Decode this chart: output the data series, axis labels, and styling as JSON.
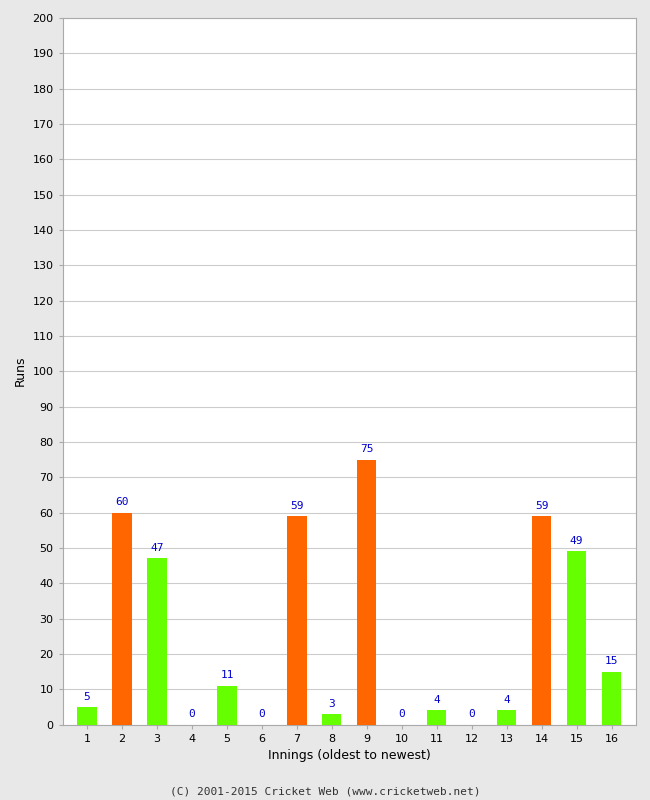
{
  "xlabel": "Innings (oldest to newest)",
  "ylabel": "Runs",
  "innings": [
    1,
    2,
    3,
    4,
    5,
    6,
    7,
    8,
    9,
    10,
    11,
    12,
    13,
    14,
    15,
    16
  ],
  "values": [
    5,
    60,
    47,
    0,
    11,
    0,
    59,
    3,
    75,
    0,
    4,
    0,
    4,
    59,
    49,
    15
  ],
  "colors": [
    "#66ff00",
    "#ff6600",
    "#66ff00",
    "#ff6600",
    "#66ff00",
    "#ff6600",
    "#ff6600",
    "#66ff00",
    "#ff6600",
    "#66ff00",
    "#66ff00",
    "#ff6600",
    "#66ff00",
    "#ff6600",
    "#66ff00",
    "#66ff00"
  ],
  "ylim": [
    0,
    200
  ],
  "yticks": [
    0,
    10,
    20,
    30,
    40,
    50,
    60,
    70,
    80,
    90,
    100,
    110,
    120,
    130,
    140,
    150,
    160,
    170,
    180,
    190,
    200
  ],
  "label_color": "#0000cc",
  "grid_color": "#cccccc",
  "bg_color": "#ffffff",
  "outer_bg": "#e8e8e8",
  "footer": "(C) 2001-2015 Cricket Web (www.cricketweb.net)",
  "bar_width": 0.55
}
